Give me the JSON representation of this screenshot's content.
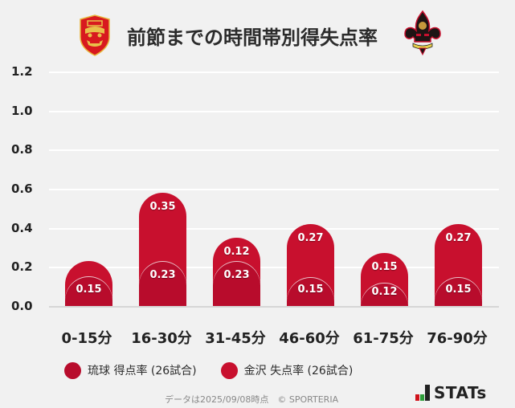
{
  "header": {
    "title": "前節までの時間帯別得失点率",
    "left_logo": "ryukyu-shisa-emblem-icon",
    "right_logo": "kanazawa-fleur-de-lis-emblem-icon"
  },
  "colors": {
    "ryukyu": "#b80c2c",
    "kanazawa": "#c8102e",
    "background": "#f1f1f1",
    "gridline": "#ffffff"
  },
  "chart_data": {
    "type": "bar",
    "stacked": true,
    "title": "前節までの時間帯別得失点率",
    "xlabel": "",
    "ylabel": "",
    "ylim": [
      0,
      1.2
    ],
    "yticks": [
      "1.2",
      "1.0",
      "0.8",
      "0.6",
      "0.4",
      "0.2",
      "0.0"
    ],
    "grid": true,
    "legend_position": "bottom",
    "categories": [
      "0-15分",
      "16-30分",
      "31-45分",
      "46-60分",
      "61-75分",
      "76-90分"
    ],
    "series": [
      {
        "name": "琉球 得点率 (26試合)",
        "values": [
          0.15,
          0.23,
          0.23,
          0.15,
          0.12,
          0.15
        ],
        "labels": [
          "0.15",
          "0.23",
          "0.23",
          "0.15",
          "0.12",
          "0.15"
        ]
      },
      {
        "name": "金沢 失点率 (26試合)",
        "values": [
          0.08,
          0.35,
          0.12,
          0.27,
          0.15,
          0.27
        ],
        "labels": [
          "",
          "0.35",
          "0.12",
          "0.27",
          "0.15",
          "0.27"
        ]
      }
    ]
  },
  "legend": [
    {
      "label": "琉球 得点率 (26試合)",
      "color": "#b80c2c"
    },
    {
      "label": "金沢 失点率 (26試合)",
      "color": "#c8102e"
    }
  ],
  "footer": {
    "note": "データは2025/09/08時点　© SPORTERIA",
    "brand": "STATs"
  }
}
